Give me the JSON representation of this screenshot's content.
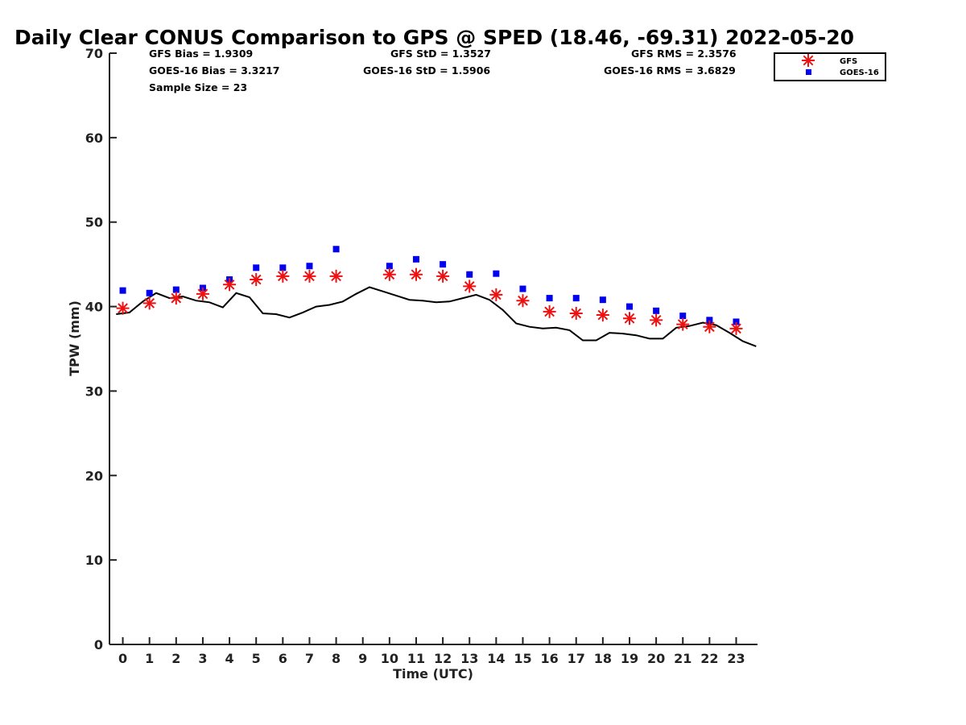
{
  "chart_data": {
    "type": "scatter",
    "title": "Daily Clear CONUS Comparison to GPS @ SPED (18.46, -69.31) 2022-05-20",
    "xlabel": "Time (UTC)",
    "ylabel": "TPW (mm)",
    "xlim": [
      -0.5,
      23.8
    ],
    "ylim": [
      0,
      70
    ],
    "x_ticks": [
      0,
      1,
      2,
      3,
      4,
      5,
      6,
      7,
      8,
      9,
      10,
      11,
      12,
      13,
      14,
      15,
      16,
      17,
      18,
      19,
      20,
      21,
      22,
      23
    ],
    "y_ticks": [
      0,
      10,
      20,
      30,
      40,
      50,
      60,
      70
    ],
    "stats": {
      "gfs_bias": "GFS Bias = 1.9309",
      "goes_bias": "GOES-16 Bias = 3.3217",
      "sample_size": "Sample Size = 23",
      "gfs_std": "GFS StD = 1.3527",
      "goes_std": "GOES-16 StD = 1.5906",
      "gfs_rms": "GFS RMS = 2.3576",
      "goes_rms": "GOES-16 RMS = 3.6829"
    },
    "legend": {
      "position": "top-right",
      "entries": [
        "GFS",
        "GOES-16"
      ]
    },
    "series": [
      {
        "name": "GFS",
        "marker": "asterisk",
        "color": "#ee1111",
        "points": [
          [
            0,
            39.8
          ],
          [
            1,
            40.4
          ],
          [
            2,
            41.0
          ],
          [
            3,
            41.5
          ],
          [
            4,
            42.6
          ],
          [
            5,
            43.2
          ],
          [
            6,
            43.6
          ],
          [
            7,
            43.6
          ],
          [
            8,
            43.6
          ],
          [
            10,
            43.8
          ],
          [
            11,
            43.8
          ],
          [
            12,
            43.6
          ],
          [
            13,
            42.4
          ],
          [
            14,
            41.4
          ],
          [
            15,
            40.7
          ],
          [
            16,
            39.4
          ],
          [
            17,
            39.2
          ],
          [
            18,
            39.0
          ],
          [
            19,
            38.6
          ],
          [
            20,
            38.4
          ],
          [
            21,
            37.9
          ],
          [
            22,
            37.6
          ],
          [
            23,
            37.4
          ]
        ]
      },
      {
        "name": "GOES-16",
        "marker": "square",
        "color": "#0000ee",
        "points": [
          [
            0,
            41.9
          ],
          [
            1,
            41.6
          ],
          [
            2,
            42.0
          ],
          [
            3,
            42.2
          ],
          [
            4,
            43.2
          ],
          [
            5,
            44.6
          ],
          [
            6,
            44.6
          ],
          [
            7,
            44.8
          ],
          [
            8,
            46.8
          ],
          [
            10,
            44.8
          ],
          [
            11,
            45.6
          ],
          [
            12,
            45.0
          ],
          [
            13,
            43.8
          ],
          [
            14,
            43.9
          ],
          [
            15,
            42.1
          ],
          [
            16,
            41.0
          ],
          [
            17,
            41.0
          ],
          [
            18,
            40.8
          ],
          [
            19,
            40.0
          ],
          [
            20,
            39.5
          ],
          [
            21,
            38.9
          ],
          [
            22,
            38.4
          ],
          [
            23,
            38.2
          ]
        ]
      },
      {
        "name": "GPS",
        "marker": "line",
        "color": "#000000",
        "points": [
          [
            -0.25,
            39.1
          ],
          [
            0.25,
            39.3
          ],
          [
            0.75,
            40.6
          ],
          [
            1.25,
            41.6
          ],
          [
            1.75,
            41.0
          ],
          [
            2.25,
            41.2
          ],
          [
            2.75,
            40.7
          ],
          [
            3.25,
            40.5
          ],
          [
            3.75,
            39.9
          ],
          [
            4.25,
            41.6
          ],
          [
            4.75,
            41.1
          ],
          [
            5.25,
            39.2
          ],
          [
            5.75,
            39.1
          ],
          [
            6.25,
            38.7
          ],
          [
            6.75,
            39.3
          ],
          [
            7.25,
            40.0
          ],
          [
            7.75,
            40.2
          ],
          [
            8.25,
            40.6
          ],
          [
            8.75,
            41.5
          ],
          [
            9.25,
            42.3
          ],
          [
            9.75,
            41.8
          ],
          [
            10.25,
            41.3
          ],
          [
            10.75,
            40.8
          ],
          [
            11.25,
            40.7
          ],
          [
            11.75,
            40.5
          ],
          [
            12.25,
            40.6
          ],
          [
            12.75,
            41.0
          ],
          [
            13.25,
            41.4
          ],
          [
            13.75,
            40.8
          ],
          [
            14.25,
            39.6
          ],
          [
            14.75,
            38.0
          ],
          [
            15.25,
            37.6
          ],
          [
            15.75,
            37.4
          ],
          [
            16.25,
            37.5
          ],
          [
            16.75,
            37.2
          ],
          [
            17.25,
            36.0
          ],
          [
            17.75,
            36.0
          ],
          [
            18.25,
            36.9
          ],
          [
            18.75,
            36.8
          ],
          [
            19.25,
            36.6
          ],
          [
            19.75,
            36.2
          ],
          [
            20.25,
            36.2
          ],
          [
            20.75,
            37.5
          ],
          [
            21.25,
            37.7
          ],
          [
            21.75,
            38.1
          ],
          [
            22.25,
            37.8
          ],
          [
            22.75,
            36.9
          ],
          [
            23.25,
            35.9
          ],
          [
            23.75,
            35.3
          ]
        ]
      }
    ]
  }
}
